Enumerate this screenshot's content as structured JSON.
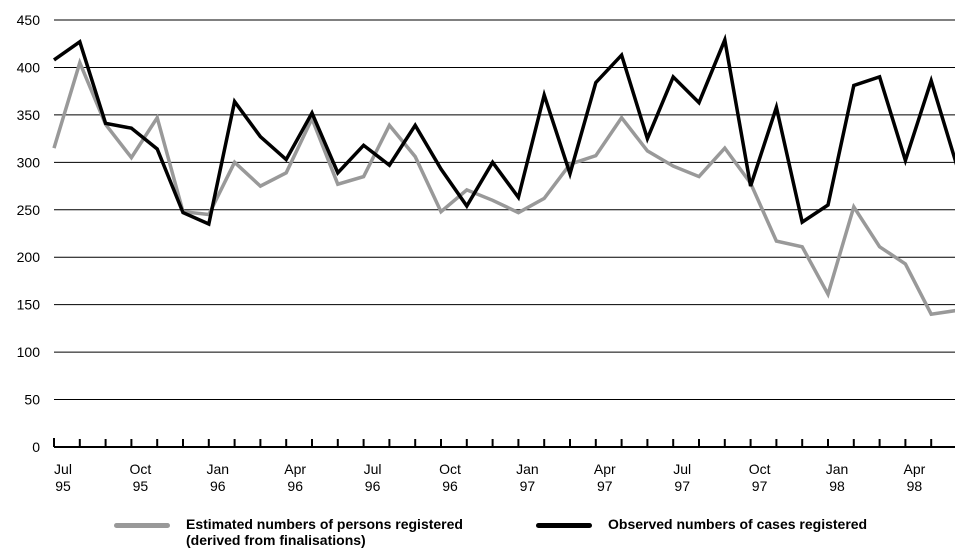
{
  "chart_data": {
    "type": "line",
    "title": "",
    "xlabel": "",
    "ylabel": "",
    "ylim": [
      0,
      450
    ],
    "yticks": [
      0,
      50,
      100,
      150,
      200,
      250,
      300,
      350,
      400,
      450
    ],
    "grid": true,
    "legend_position": "bottom",
    "x": [
      "Jul 95",
      "Aug 95",
      "Sep 95",
      "Oct 95",
      "Nov 95",
      "Dec 95",
      "Jan 96",
      "Feb 96",
      "Mar 96",
      "Apr 96",
      "May 96",
      "Jun 96",
      "Jul 96",
      "Aug 96",
      "Sep 96",
      "Oct 96",
      "Nov 96",
      "Dec 96",
      "Jan 97",
      "Feb 97",
      "Mar 97",
      "Apr 97",
      "May 97",
      "Jun 97",
      "Jul 97",
      "Aug 97",
      "Sep 97",
      "Oct 97",
      "Nov 97",
      "Dec 97",
      "Jan 98",
      "Feb 98",
      "Mar 98",
      "Apr 98",
      "May 98",
      "Jun 98"
    ],
    "x_tick_labels": [
      {
        "index": 0,
        "line1": "Jul",
        "line2": "95"
      },
      {
        "index": 3,
        "line1": "Oct",
        "line2": "95"
      },
      {
        "index": 6,
        "line1": "Jan",
        "line2": "96"
      },
      {
        "index": 9,
        "line1": "Apr",
        "line2": "96"
      },
      {
        "index": 12,
        "line1": "Jul",
        "line2": "96"
      },
      {
        "index": 15,
        "line1": "Oct",
        "line2": "96"
      },
      {
        "index": 18,
        "line1": "Jan",
        "line2": "97"
      },
      {
        "index": 21,
        "line1": "Apr",
        "line2": "97"
      },
      {
        "index": 24,
        "line1": "Jul",
        "line2": "97"
      },
      {
        "index": 27,
        "line1": "Oct",
        "line2": "97"
      },
      {
        "index": 30,
        "line1": "Jan",
        "line2": "98"
      },
      {
        "index": 33,
        "line1": "Apr",
        "line2": "98"
      }
    ],
    "series": [
      {
        "name": "Estimated numbers of persons registered (derived from finalisations)",
        "legend_line1": "Estimated numbers of persons registered",
        "legend_line2": "(derived from finalisations)",
        "color": "#999999",
        "values": [
          315,
          405,
          340,
          305,
          347,
          248,
          245,
          300,
          275,
          289,
          346,
          277,
          285,
          339,
          306,
          248,
          271,
          260,
          247,
          262,
          298,
          307,
          347,
          312,
          296,
          285,
          315,
          278,
          217,
          211,
          161,
          253,
          211,
          193,
          140,
          144
        ]
      },
      {
        "name": "Observed numbers of cases registered",
        "legend_line1": "Observed numbers of cases registered",
        "color": "#000000",
        "values": [
          408,
          427,
          341,
          336,
          314,
          247,
          235,
          364,
          327,
          303,
          352,
          289,
          318,
          297,
          339,
          293,
          254,
          300,
          263,
          371,
          288,
          384,
          413,
          325,
          390,
          363,
          429,
          275,
          358,
          237,
          255,
          381,
          390,
          302,
          386,
          296
        ]
      }
    ]
  }
}
